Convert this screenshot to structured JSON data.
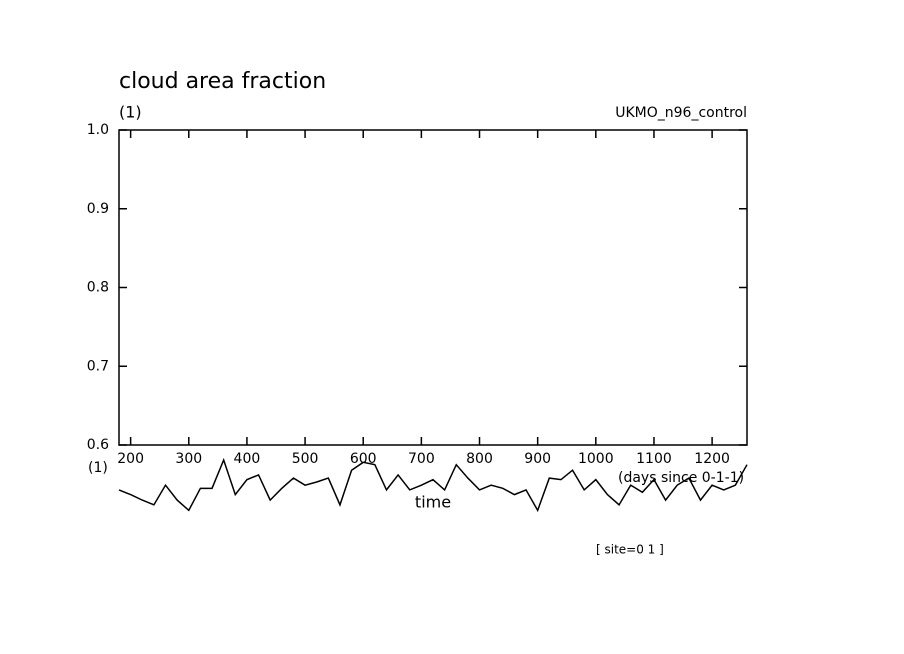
{
  "chart_data": {
    "type": "line",
    "title": "cloud area fraction",
    "y_units": "(1)",
    "x_units_left": "(1)",
    "dataset": "UKMO_n96_control",
    "x_label": "time",
    "x_units": "(days since 0-1-1)",
    "footnote": "[ site=0 1 ]",
    "x": [
      180,
      200,
      220,
      240,
      260,
      280,
      300,
      320,
      340,
      360,
      380,
      400,
      420,
      440,
      460,
      480,
      500,
      520,
      540,
      560,
      580,
      600,
      620,
      640,
      660,
      680,
      700,
      720,
      740,
      760,
      780,
      800,
      820,
      840,
      860,
      880,
      900,
      920,
      940,
      960,
      980,
      1000,
      1020,
      1040,
      1060,
      1080,
      1100,
      1120,
      1140,
      1160,
      1180,
      1200,
      1220,
      1240,
      1260
    ],
    "series": [
      {
        "name": "cloud area fraction",
        "color": "#000000",
        "values": [
          0.543,
          0.537,
          0.53,
          0.524,
          0.549,
          0.53,
          0.517,
          0.545,
          0.545,
          0.581,
          0.537,
          0.556,
          0.562,
          0.53,
          0.545,
          0.558,
          0.549,
          0.553,
          0.558,
          0.524,
          0.568,
          0.578,
          0.575,
          0.543,
          0.562,
          0.543,
          0.549,
          0.556,
          0.543,
          0.575,
          0.558,
          0.543,
          0.549,
          0.545,
          0.537,
          0.543,
          0.517,
          0.558,
          0.556,
          0.568,
          0.543,
          0.556,
          0.537,
          0.524,
          0.549,
          0.54,
          0.556,
          0.53,
          0.549,
          0.558,
          0.53,
          0.549,
          0.543,
          0.549,
          0.575
        ]
      }
    ],
    "xlim": [
      180,
      1260
    ],
    "ylim": [
      0.6,
      1.0
    ],
    "xticks": [
      200,
      300,
      400,
      500,
      600,
      700,
      800,
      900,
      1000,
      1100,
      1200
    ],
    "yticks": [
      0.6,
      0.7,
      0.8,
      0.9,
      {
        "value": 1,
        "label": "1.0"
      }
    ]
  }
}
